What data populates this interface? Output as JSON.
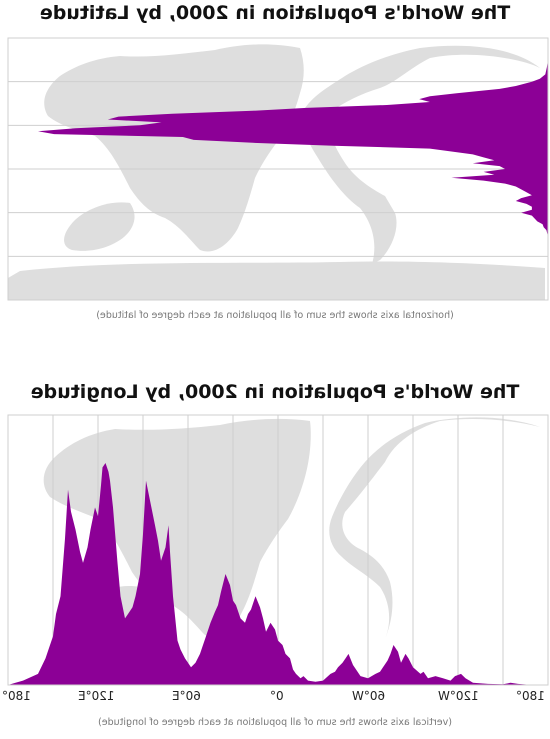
{
  "chart_data": [
    {
      "type": "area",
      "title": "The World's Population in 2000, by Latitude",
      "note": "(horizontal axis shows the sum of all population at each degree of latitude)",
      "orientation": "horizontal",
      "mirrored": true,
      "y_axis": "latitude",
      "ylim": [
        -90,
        90
      ],
      "grid_lines_lat": [
        60,
        30,
        0,
        -30,
        -60
      ],
      "grid": true,
      "fill_color": "#8c0096",
      "map_color": "#dedede",
      "series": [
        {
          "lat": [
            75,
            70,
            65,
            62,
            60,
            57,
            55,
            52,
            50,
            48,
            46,
            44,
            42,
            40,
            38,
            36,
            34,
            32,
            30,
            28,
            26,
            24,
            22,
            20,
            18,
            16,
            14,
            12,
            10,
            8,
            6,
            4,
            2,
            0,
            -2,
            -4,
            -6,
            -8,
            -10,
            -12,
            -14,
            -16,
            -18,
            -20,
            -22,
            -24,
            -26,
            -28,
            -30,
            -32,
            -34,
            -36,
            -38,
            -40,
            -42,
            -45,
            -50,
            -55
          ],
          "population": [
            0,
            0.2,
            0.5,
            1.5,
            3,
            6,
            9,
            17,
            22,
            24,
            22,
            30,
            45,
            55,
            70,
            80,
            82,
            72,
            76,
            88,
            95,
            92,
            68,
            66,
            55,
            40,
            22,
            18,
            14,
            12,
            10,
            14,
            9,
            8,
            12,
            10,
            18,
            12,
            8,
            6,
            5,
            4,
            3,
            5,
            6,
            4,
            3,
            3,
            5,
            3,
            2.5,
            2,
            1,
            0.8,
            0.3,
            0.1,
            0,
            0
          ]
        }
      ]
    },
    {
      "type": "area",
      "title": "The World's Population in 2000, by Longitude",
      "note": "(vertical axis shows the sum of all population at each degree of longitude)",
      "mirrored": true,
      "x_axis": "longitude",
      "xlim": [
        -180,
        180
      ],
      "tick_labels": [
        "180°",
        "120°E",
        "60°E",
        "0°",
        "60°W",
        "120°W",
        "180°"
      ],
      "grid": true,
      "fill_color": "#8c0096",
      "map_color": "#dedede",
      "series": [
        {
          "lon": [
            -180,
            -170,
            -160,
            -155,
            -150,
            -140,
            -130,
            -125,
            -122,
            -118,
            -115,
            -110,
            -105,
            -100,
            -97,
            -95,
            -90,
            -87,
            -85,
            -82,
            -80,
            -77,
            -75,
            -73,
            -70,
            -68,
            -65,
            -60,
            -55,
            -50,
            -47,
            -45,
            -43,
            -40,
            -38,
            -35,
            -30,
            -25,
            -20,
            -17,
            -15,
            -12,
            -10,
            -8,
            -5,
            -3,
            0,
            2,
            5,
            8,
            10,
            12,
            15,
            18,
            20,
            22,
            25,
            28,
            30,
            32,
            35,
            38,
            40,
            42,
            45,
            48,
            50,
            52,
            55,
            58,
            60,
            62,
            65,
            67,
            70,
            72,
            73,
            75,
            77,
            78,
            80,
            82,
            85,
            88,
            90,
            92,
            95,
            97,
            100,
            102,
            105,
            107,
            110,
            112,
            113,
            115,
            117,
            118,
            120,
            122,
            125,
            127,
            130,
            132,
            135,
            138,
            140,
            142,
            145,
            148,
            150,
            153,
            155,
            160,
            170,
            175,
            180
          ],
          "population": [
            0,
            0,
            0.5,
            1,
            0.3,
            0.5,
            1,
            3,
            5,
            4,
            2,
            3,
            4,
            3,
            6,
            5,
            8,
            12,
            14,
            10,
            15,
            18,
            14,
            11,
            8,
            6,
            5,
            3,
            4,
            9,
            14,
            12,
            10,
            8,
            6,
            5,
            2,
            1.5,
            2,
            4,
            3,
            5,
            7,
            12,
            14,
            18,
            20,
            25,
            28,
            24,
            30,
            35,
            40,
            34,
            32,
            28,
            30,
            36,
            38,
            45,
            50,
            42,
            36,
            33,
            28,
            22,
            18,
            14,
            10,
            8,
            10,
            12,
            16,
            20,
            40,
            60,
            72,
            62,
            58,
            56,
            65,
            72,
            82,
            92,
            68,
            50,
            40,
            35,
            32,
            30,
            40,
            55,
            80,
            92,
            96,
            100,
            98,
            90,
            76,
            80,
            70,
            62,
            55,
            60,
            70,
            78,
            88,
            66,
            40,
            32,
            22,
            16,
            12,
            5,
            2,
            1,
            0
          ]
        }
      ]
    }
  ]
}
